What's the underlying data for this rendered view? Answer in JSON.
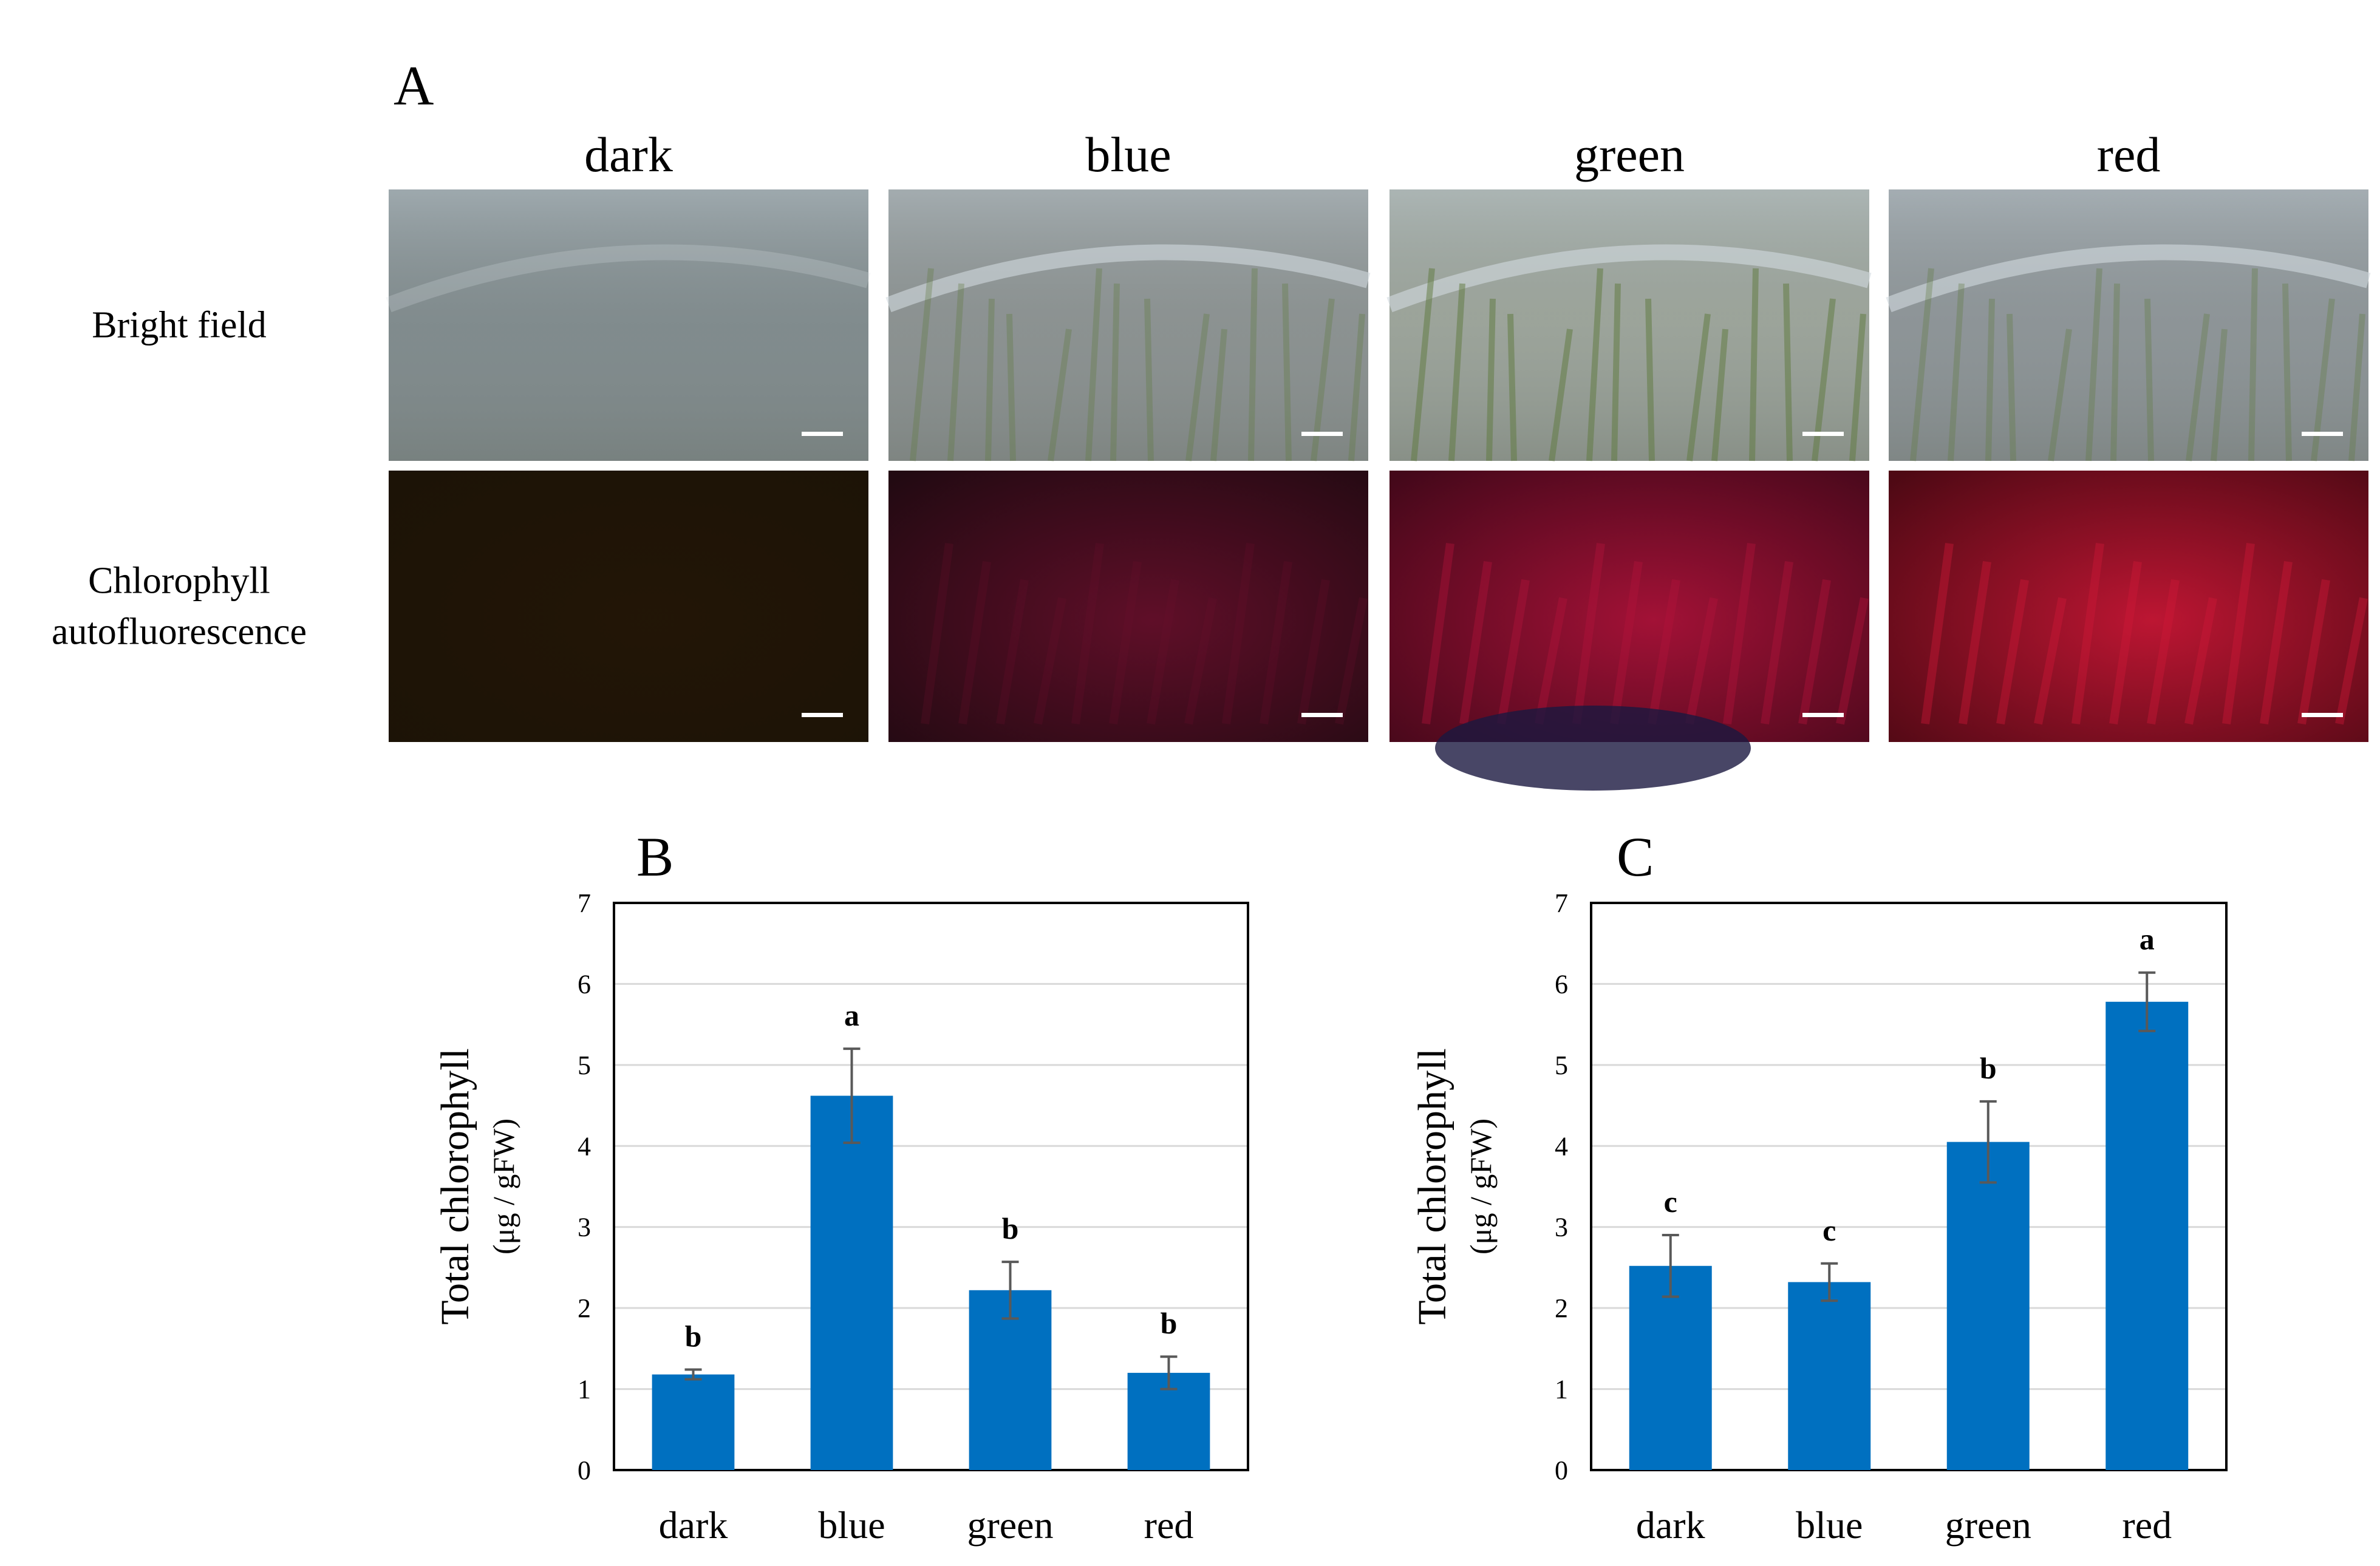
{
  "panel_a": {
    "letter": "A",
    "columns": [
      "dark",
      "blue",
      "green",
      "red"
    ],
    "rows": [
      {
        "label_lines": [
          "Bright field"
        ],
        "kind": "brightfield"
      },
      {
        "label_lines": [
          "Chlorophyll",
          "autofluorescence"
        ],
        "kind": "fluorescence"
      }
    ],
    "colors": {
      "brightfield": {
        "dark": "#7f8a8c",
        "blue": "#8b9190",
        "green": "#9da59a",
        "red": "#8d9497"
      },
      "fluorescence": {
        "dark": "#1c1306",
        "blue": "#220a12",
        "green": "#44081a",
        "red": "#4e0914"
      },
      "fluorescence_glow": {
        "dark": "#2e1a06",
        "blue": "#6a0f2c",
        "green": "#b3133b",
        "red": "#d01838"
      }
    }
  },
  "chart_data": [
    {
      "type": "bar",
      "panel": "B",
      "categories": [
        "dark",
        "blue",
        "green",
        "red"
      ],
      "values": [
        1.18,
        4.62,
        2.22,
        1.2
      ],
      "errors": [
        0.06,
        0.58,
        0.35,
        0.2
      ],
      "significance": [
        "b",
        "a",
        "b",
        "b"
      ],
      "ylabel": "Total chlorophyll",
      "yunit": "(μg / gFW)",
      "ylim": [
        0,
        7
      ],
      "yticks": [
        0,
        1,
        2,
        3,
        4,
        5,
        6,
        7
      ],
      "grid": true,
      "bar_color": "#0070c0"
    },
    {
      "type": "bar",
      "panel": "C",
      "categories": [
        "dark",
        "blue",
        "green",
        "red"
      ],
      "values": [
        2.52,
        2.32,
        4.05,
        5.78
      ],
      "errors": [
        0.38,
        0.23,
        0.5,
        0.36
      ],
      "significance": [
        "c",
        "c",
        "b",
        "a"
      ],
      "ylabel": "Total chlorophyll",
      "yunit": "(μg / gFW)",
      "ylim": [
        0,
        7
      ],
      "yticks": [
        0,
        1,
        2,
        3,
        4,
        5,
        6,
        7
      ],
      "grid": true,
      "bar_color": "#0070c0"
    }
  ]
}
